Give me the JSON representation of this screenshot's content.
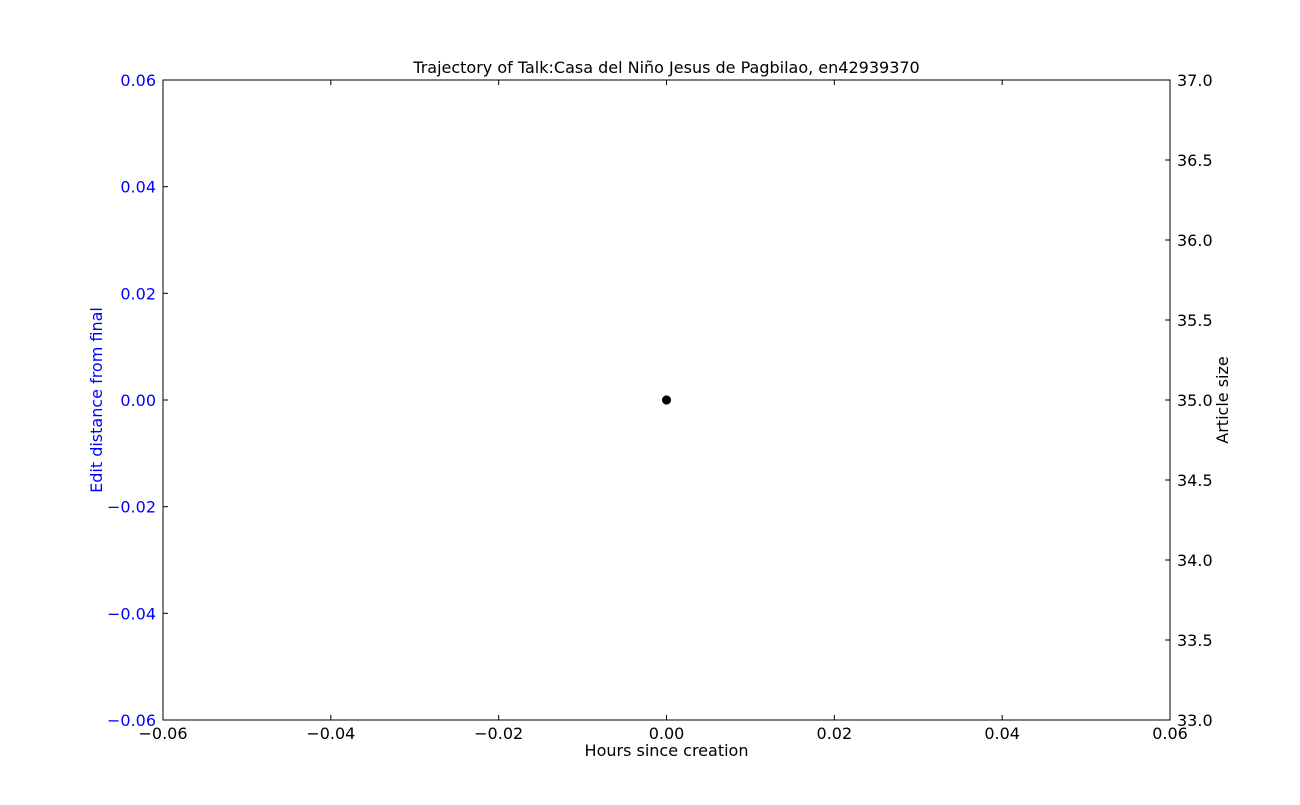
{
  "chart_data": {
    "type": "scatter",
    "title": "Trajectory of Talk:Casa del Niño Jesus de Pagbilao, en42939370",
    "xlabel": "Hours since creation",
    "ylabel_left": "Edit distance from final",
    "ylabel_right": "Article size",
    "xlim": [
      -0.06,
      0.06
    ],
    "ylim_left": [
      -0.06,
      0.06
    ],
    "ylim_right": [
      33.0,
      37.0
    ],
    "x_ticks": [
      "−0.06",
      "−0.04",
      "−0.02",
      "0.00",
      "0.02",
      "0.04",
      "0.06"
    ],
    "x_tick_values": [
      -0.06,
      -0.04,
      -0.02,
      0.0,
      0.02,
      0.04,
      0.06
    ],
    "y_left_ticks": [
      "0.06",
      "0.04",
      "0.02",
      "0.00",
      "−0.02",
      "−0.04",
      "−0.06"
    ],
    "y_left_tick_values": [
      0.06,
      0.04,
      0.02,
      0.0,
      -0.02,
      -0.04,
      -0.06
    ],
    "y_right_ticks": [
      "37.0",
      "36.5",
      "36.0",
      "35.5",
      "35.0",
      "34.5",
      "34.0",
      "33.5",
      "33.0"
    ],
    "y_right_tick_values": [
      37.0,
      36.5,
      36.0,
      35.5,
      35.0,
      34.5,
      34.0,
      33.5,
      33.0
    ],
    "grid": false,
    "series": [
      {
        "axis": "left",
        "points": [
          {
            "x": 0.0,
            "y": 0.0
          }
        ],
        "color": "#0000ff"
      },
      {
        "axis": "right",
        "points": [
          {
            "x": 0.0,
            "y": 35.0
          }
        ],
        "color": "#000000"
      }
    ],
    "colors": {
      "left_axis": "#0000ff",
      "right_axis": "#000000",
      "frame": "#000000"
    }
  }
}
